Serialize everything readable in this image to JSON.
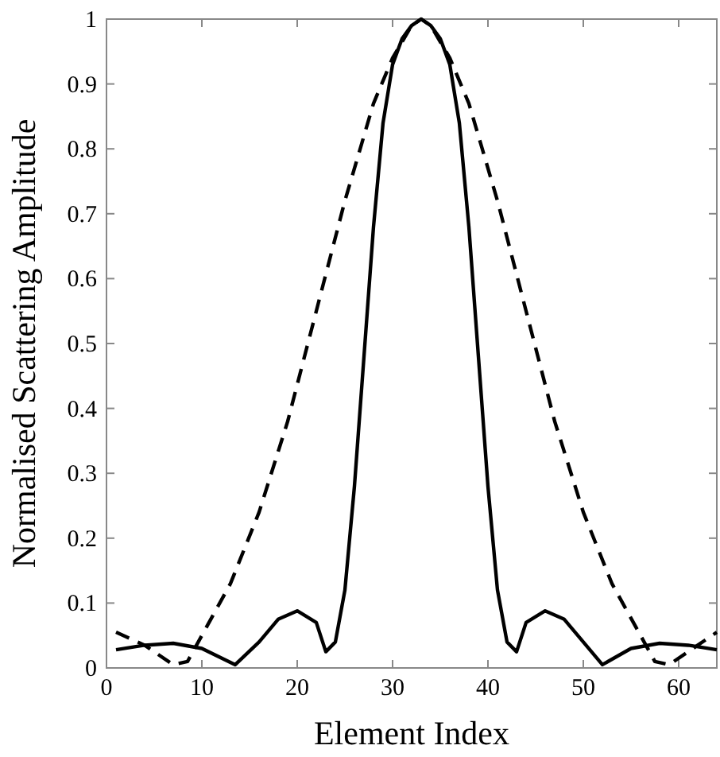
{
  "chart_data": {
    "type": "line",
    "xlabel": "Element Index",
    "ylabel": "Normalised Scattering Amplitude",
    "xlim": [
      0,
      64
    ],
    "ylim": [
      0,
      1
    ],
    "xticks": [
      0,
      10,
      20,
      30,
      40,
      50,
      60
    ],
    "yticks": [
      0,
      0.1,
      0.2,
      0.3,
      0.4,
      0.5,
      0.6,
      0.7,
      0.8,
      0.9,
      1
    ],
    "grid": false,
    "marker": "none",
    "series": [
      {
        "color": "#000000",
        "line_style": "solid",
        "x": [
          1,
          4,
          7,
          10,
          13.5,
          16,
          18,
          20,
          22,
          23,
          24,
          25,
          26,
          27,
          28,
          29,
          30,
          31,
          32,
          33,
          34,
          35,
          36,
          37,
          38,
          39,
          40,
          41,
          42,
          43,
          44,
          46,
          48,
          50,
          52,
          55,
          58,
          61,
          64
        ],
        "values": [
          0.028,
          0.035,
          0.038,
          0.03,
          0.005,
          0.04,
          0.075,
          0.088,
          0.07,
          0.025,
          0.04,
          0.12,
          0.28,
          0.48,
          0.68,
          0.84,
          0.93,
          0.97,
          0.99,
          1,
          0.99,
          0.97,
          0.93,
          0.84,
          0.68,
          0.48,
          0.28,
          0.12,
          0.04,
          0.025,
          0.07,
          0.088,
          0.075,
          0.04,
          0.005,
          0.03,
          0.038,
          0.035,
          0.028
        ]
      },
      {
        "color": "#000000",
        "line_style": "dashed",
        "x": [
          1,
          4,
          7,
          8.5,
          10,
          13,
          16,
          19,
          22,
          25,
          28,
          30,
          32,
          33,
          34,
          36,
          38,
          41,
          44,
          47,
          50,
          53,
          56,
          57.5,
          59,
          62,
          64
        ],
        "values": [
          0.055,
          0.035,
          0.005,
          0.01,
          0.05,
          0.13,
          0.24,
          0.38,
          0.55,
          0.72,
          0.87,
          0.94,
          0.99,
          1,
          0.99,
          0.94,
          0.87,
          0.72,
          0.55,
          0.38,
          0.24,
          0.13,
          0.05,
          0.01,
          0.005,
          0.035,
          0.055
        ]
      }
    ]
  }
}
